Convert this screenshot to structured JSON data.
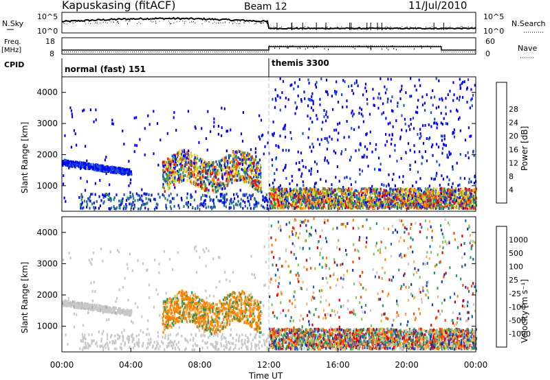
{
  "header": {
    "station": "Kapuskasing (fitACF)",
    "beam": "Beam 12",
    "date": "11/Jul/2010"
  },
  "noise_panel": {
    "left_label": "N.Sky",
    "right_label": "N.Search",
    "y_ticks_left": [
      "10^5",
      "10^0"
    ],
    "y_ticks_right": [
      "10^5",
      "10^0"
    ]
  },
  "freq_panel": {
    "left_label_1": "Freq.",
    "left_label_2": "[MHz]",
    "right_label": "Nave",
    "y_ticks_left": [
      "18",
      "8"
    ],
    "y_ticks_right": [
      "60",
      "0"
    ],
    "freq_mhz": [
      {
        "from": 0,
        "to": 12,
        "value": 10.5
      },
      {
        "from": 12,
        "to": 22,
        "value": 12.6
      },
      {
        "from": 22,
        "to": 24,
        "value": 10.5
      }
    ],
    "nave": [
      {
        "from": 0,
        "to": 12,
        "value": 8
      },
      {
        "from": 12,
        "to": 22,
        "value": 30
      },
      {
        "from": 22,
        "to": 24,
        "value": 8
      }
    ]
  },
  "cpid_panel": {
    "label": "CPID",
    "modes": [
      {
        "name": "normal (fast) 151",
        "start_hour": 0
      },
      {
        "name": "themis 3300",
        "start_hour": 12
      }
    ]
  },
  "chart_data": [
    {
      "type": "heatmap",
      "quantity": "power",
      "ylabel": "Slant Range [km]",
      "xlabel": "Time UT",
      "xlim_hours": [
        0,
        24
      ],
      "ylim": [
        180,
        4500
      ],
      "y_ticks": [
        "1000",
        "2000",
        "3000",
        "4000"
      ],
      "colorbar_label": "Power [dB]",
      "colorbar_ticks": [
        "4",
        "8",
        "12",
        "16",
        "20",
        "24",
        "28"
      ],
      "colorbar_colors": [
        "#0000ff",
        "#1a4fc9",
        "#2f7f6f",
        "#2ea84f",
        "#b4d63a",
        "#ffd21a",
        "#ff9d00",
        "#ff5a00",
        "#ff0000"
      ],
      "features": [
        {
          "name": "backscatter arc",
          "time_hours": [
            0,
            4
          ],
          "range_km": [
            1300,
            1800
          ],
          "level": "low"
        },
        {
          "name": "strong echo band",
          "time_hours": [
            6,
            11.5
          ],
          "range_km": [
            900,
            2100
          ],
          "level": "high"
        },
        {
          "name": "near-range dense echoes",
          "time_hours": [
            12,
            24
          ],
          "range_km": [
            200,
            850
          ],
          "level": "mixed"
        }
      ]
    },
    {
      "type": "heatmap",
      "quantity": "velocity",
      "ylabel": "Slant Range [km]",
      "xlabel": "Time UT",
      "xlim_hours": [
        0,
        24
      ],
      "ylim": [
        180,
        4500
      ],
      "y_ticks": [
        "1000",
        "2000",
        "3000",
        "4000"
      ],
      "colorbar_label": "Velocity [m s⁻¹]",
      "colorbar_ticks": [
        "1000",
        "500",
        "100",
        "25",
        "-25",
        "-100",
        "-500",
        "-1000"
      ],
      "colorbar_colors": [
        "#1a2fb0",
        "#1d66c8",
        "#2c9a57",
        "#7fc85a",
        "#c8c8c8",
        "#ffb15a",
        "#ff8200",
        "#ff4800",
        "#e00000"
      ],
      "features": [
        {
          "name": "ground scatter arc",
          "time_hours": [
            0,
            4
          ],
          "range_km": [
            1300,
            1800
          ],
          "velocity": "near zero"
        },
        {
          "name": "receding echo band",
          "time_hours": [
            7,
            11.5
          ],
          "range_km": [
            1000,
            2000
          ],
          "velocity": "-100 to -500"
        },
        {
          "name": "mixed near-range echoes",
          "time_hours": [
            12,
            24
          ],
          "range_km": [
            200,
            850
          ],
          "velocity": "mixed"
        }
      ]
    }
  ],
  "x_ticks": [
    "00:00",
    "04:00",
    "08:00",
    "12:00",
    "16:00",
    "20:00",
    "00:00"
  ],
  "x_title": "Time UT"
}
